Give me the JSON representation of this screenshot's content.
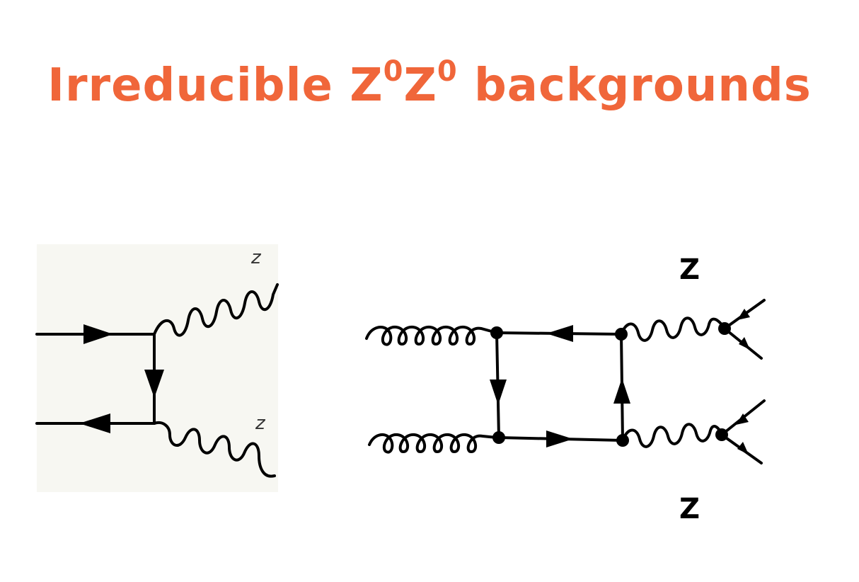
{
  "slide": {
    "title_main": "Irreducible Z",
    "title_sup1": "0",
    "title_mid": "Z",
    "title_sup2": "0",
    "title_end": " backgrounds"
  },
  "diagram_left": {
    "z_top": "z",
    "z_bottom": "z"
  },
  "diagram_right": {
    "z_top": "Z",
    "z_bottom": "Z"
  },
  "colors": {
    "title": "#f0663a",
    "panel": "#f7f7f2",
    "lines": "#000000"
  }
}
